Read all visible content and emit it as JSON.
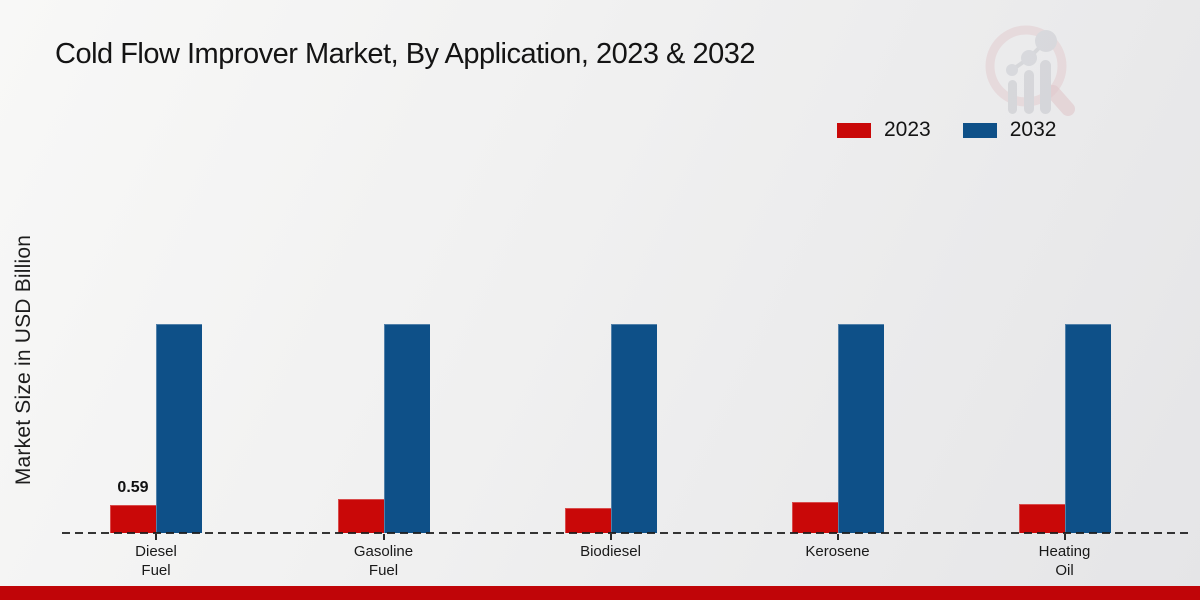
{
  "page": {
    "title": "Cold Flow Improver Market, By Application, 2023 & 2032",
    "footer_color": "#c00508"
  },
  "colors": {
    "series_2023": "#c90808",
    "series_2032": "#0e5088",
    "text": "#141414",
    "watermark_ring": "#ddb3b8",
    "watermark_bars": "#c5c7cd"
  },
  "chart_data": {
    "type": "bar",
    "title": "Cold Flow Improver Market, By Application, 2023 & 2032",
    "xlabel": "",
    "ylabel": "Market Size in USD Billion",
    "categories": [
      "Diesel Fuel",
      "Gasoline Fuel",
      "Biodiesel",
      "Kerosene",
      "Heating Oil"
    ],
    "category_lines": [
      [
        "Diesel",
        "Fuel"
      ],
      [
        "Gasoline",
        "Fuel"
      ],
      [
        "Biodiesel"
      ],
      [
        "Kerosene"
      ],
      [
        "Heating",
        "Oil"
      ]
    ],
    "series": [
      {
        "name": "2023",
        "color": "#c90808",
        "values": [
          0.59,
          0.72,
          0.53,
          0.65,
          0.61
        ],
        "labels": [
          "0.59",
          "",
          "",
          "",
          ""
        ]
      },
      {
        "name": "2032",
        "color": "#0e5088",
        "values": [
          4.4,
          4.4,
          4.4,
          4.4,
          4.4
        ],
        "labels": [
          "",
          "",
          "",
          "",
          ""
        ]
      }
    ],
    "legend": [
      "2023",
      "2032"
    ],
    "legend_position": "top-right",
    "grid": false,
    "baseline_style": "dashed",
    "value_axis_ticks_visible": false,
    "ylim": [
      0,
      4.6
    ]
  }
}
